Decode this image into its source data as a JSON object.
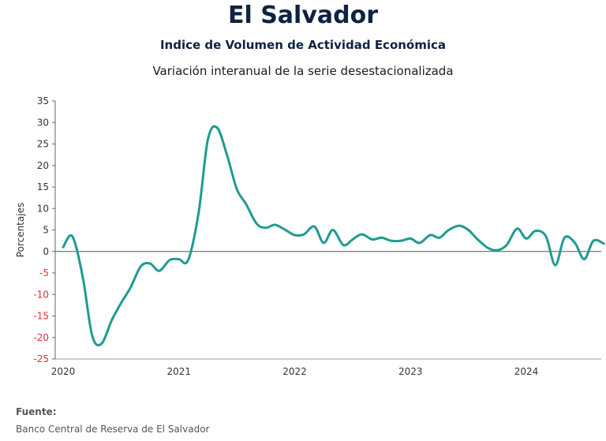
{
  "header": {
    "title": "El Salvador",
    "subtitle": "Indice de Volumen de  Actividad Económica",
    "subtitle2": "Variación interanual de la serie desestacionalizada"
  },
  "source": {
    "label": "Fuente:",
    "text": "Banco Central de Reserva de El Salvador"
  },
  "chart_data": {
    "type": "line",
    "ylabel": "Porcentajes",
    "ylim": [
      -25,
      35
    ],
    "yticks": [
      35,
      30,
      25,
      20,
      15,
      10,
      5,
      0,
      -5,
      -10,
      -15,
      -20,
      -25
    ],
    "xticks": [
      2020,
      2021,
      2022,
      2023,
      2024
    ],
    "xlim": [
      2020,
      2024.67
    ],
    "grid": false,
    "colors": {
      "line": "#1f9b91",
      "negative_ticks": "#e03030",
      "positive_ticks": "#333333",
      "zero_line": "#555555"
    },
    "series": [
      {
        "values": [
          [
            2020.0,
            1.0
          ],
          [
            2020.08,
            3.5
          ],
          [
            2020.17,
            -6.0
          ],
          [
            2020.25,
            -19.5
          ],
          [
            2020.33,
            -21.5
          ],
          [
            2020.42,
            -16.0
          ],
          [
            2020.5,
            -12.0
          ],
          [
            2020.58,
            -8.5
          ],
          [
            2020.67,
            -3.5
          ],
          [
            2020.75,
            -2.8
          ],
          [
            2020.83,
            -4.5
          ],
          [
            2020.92,
            -2.0
          ],
          [
            2021.0,
            -1.8
          ],
          [
            2021.08,
            -2.0
          ],
          [
            2021.17,
            9.0
          ],
          [
            2021.25,
            26.0
          ],
          [
            2021.33,
            28.8
          ],
          [
            2021.42,
            22.0
          ],
          [
            2021.5,
            14.5
          ],
          [
            2021.58,
            11.0
          ],
          [
            2021.67,
            6.5
          ],
          [
            2021.75,
            5.5
          ],
          [
            2021.83,
            6.2
          ],
          [
            2021.92,
            5.0
          ],
          [
            2022.0,
            3.8
          ],
          [
            2022.08,
            4.0
          ],
          [
            2022.17,
            5.8
          ],
          [
            2022.25,
            2.0
          ],
          [
            2022.33,
            5.0
          ],
          [
            2022.42,
            1.5
          ],
          [
            2022.5,
            2.8
          ],
          [
            2022.58,
            4.0
          ],
          [
            2022.67,
            2.8
          ],
          [
            2022.75,
            3.2
          ],
          [
            2022.83,
            2.5
          ],
          [
            2022.92,
            2.5
          ],
          [
            2023.0,
            3.0
          ],
          [
            2023.08,
            2.0
          ],
          [
            2023.17,
            3.8
          ],
          [
            2023.25,
            3.2
          ],
          [
            2023.33,
            5.0
          ],
          [
            2023.42,
            6.0
          ],
          [
            2023.5,
            5.0
          ],
          [
            2023.58,
            2.8
          ],
          [
            2023.67,
            0.8
          ],
          [
            2023.75,
            0.3
          ],
          [
            2023.83,
            1.5
          ],
          [
            2023.92,
            5.3
          ],
          [
            2024.0,
            3.0
          ],
          [
            2024.08,
            4.8
          ],
          [
            2024.17,
            3.5
          ],
          [
            2024.25,
            -3.2
          ],
          [
            2024.33,
            3.2
          ],
          [
            2024.42,
            2.0
          ],
          [
            2024.5,
            -1.8
          ],
          [
            2024.58,
            2.5
          ],
          [
            2024.67,
            1.8
          ]
        ]
      }
    ]
  }
}
